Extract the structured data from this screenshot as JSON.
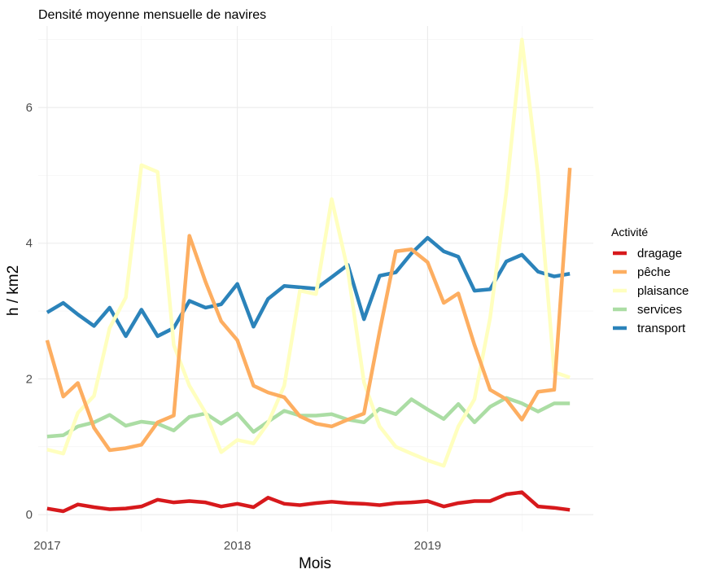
{
  "chart_data": {
    "type": "line",
    "title": "Densité moyenne mensuelle de navires",
    "xlabel": "Mois",
    "ylabel": "h / km2",
    "x_start": "2017-01",
    "x_end": "2019-10",
    "xlim": [
      "2016-12-15",
      "2019-11-15"
    ],
    "xticks": [
      {
        "date": "2017-01",
        "label": "2017"
      },
      {
        "date": "2018-01",
        "label": "2018"
      },
      {
        "date": "2019-01",
        "label": "2019"
      }
    ],
    "ylim": [
      -0.25,
      7.2
    ],
    "yticks": [
      0,
      2,
      4,
      6
    ],
    "grid": true,
    "legend_title": "Activité",
    "legend_position": "right",
    "series": [
      {
        "name": "dragage",
        "color": "#d7191c",
        "values": [
          0.09,
          0.05,
          0.15,
          0.11,
          0.08,
          0.09,
          0.12,
          0.22,
          0.18,
          0.2,
          0.18,
          0.12,
          0.16,
          0.11,
          0.25,
          0.16,
          0.14,
          0.17,
          0.19,
          0.17,
          0.16,
          0.14,
          0.17,
          0.18,
          0.2,
          0.12,
          0.17,
          0.2,
          0.2,
          0.3,
          0.33,
          0.12,
          0.1,
          0.07
        ]
      },
      {
        "name": "pêche",
        "color": "#fdae61",
        "values": [
          2.57,
          1.74,
          1.94,
          1.28,
          0.95,
          0.98,
          1.03,
          1.36,
          1.46,
          4.11,
          3.43,
          2.85,
          2.57,
          1.9,
          1.8,
          1.73,
          1.45,
          1.34,
          1.3,
          1.4,
          1.49,
          2.7,
          3.88,
          3.91,
          3.72,
          3.12,
          3.26,
          2.5,
          1.84,
          1.7,
          1.4,
          1.81,
          1.84,
          5.11
        ]
      },
      {
        "name": "plaisance",
        "color": "#ffffbf",
        "values": [
          0.96,
          0.9,
          1.5,
          1.75,
          2.75,
          3.2,
          5.15,
          5.05,
          2.5,
          1.9,
          1.5,
          0.92,
          1.1,
          1.05,
          1.35,
          1.9,
          3.3,
          3.25,
          4.65,
          3.6,
          1.95,
          1.3,
          1.0,
          0.9,
          0.8,
          0.72,
          1.3,
          1.7,
          2.9,
          4.75,
          7.0,
          5.0,
          2.1,
          2.02
        ]
      },
      {
        "name": "services",
        "color": "#abdda4",
        "values": [
          1.15,
          1.17,
          1.3,
          1.36,
          1.47,
          1.31,
          1.37,
          1.34,
          1.24,
          1.44,
          1.49,
          1.34,
          1.49,
          1.22,
          1.37,
          1.53,
          1.46,
          1.46,
          1.48,
          1.4,
          1.36,
          1.56,
          1.48,
          1.7,
          1.55,
          1.41,
          1.63,
          1.36,
          1.59,
          1.72,
          1.64,
          1.52,
          1.64,
          1.64
        ]
      },
      {
        "name": "transport",
        "color": "#2b83ba",
        "values": [
          2.98,
          3.12,
          2.95,
          2.78,
          3.05,
          2.63,
          3.02,
          2.63,
          2.75,
          3.15,
          3.05,
          3.1,
          3.4,
          2.77,
          3.18,
          3.37,
          3.35,
          3.33,
          3.5,
          3.68,
          2.88,
          3.52,
          3.57,
          3.85,
          4.08,
          3.88,
          3.8,
          3.3,
          3.32,
          3.73,
          3.83,
          3.58,
          3.51,
          3.55
        ]
      }
    ]
  }
}
